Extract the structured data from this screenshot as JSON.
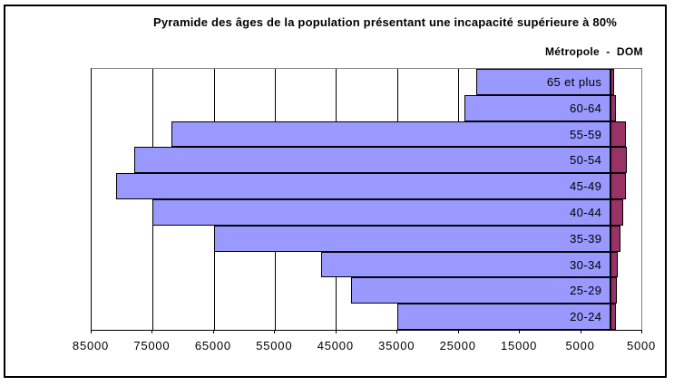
{
  "title": "Pyramide des âges de la population présentant une incapacité supérieure à 80%",
  "legend": {
    "text": "Métropole  -  DOM"
  },
  "chart_data": {
    "type": "bar",
    "subtype": "horizontal-population-pyramid",
    "title": "Pyramide des âges de la population présentant une incapacité supérieure à 80%",
    "categories": [
      "65 et plus",
      "60-64",
      "55-59",
      "50-54",
      "45-49",
      "40-44",
      "35-39",
      "30-34",
      "25-29",
      "20-24"
    ],
    "series": [
      {
        "name": "Métropole",
        "color": "#9999FF",
        "side": "left",
        "values": [
          22000,
          24000,
          72000,
          78000,
          81000,
          75000,
          65000,
          47500,
          42500,
          35000
        ]
      },
      {
        "name": "DOM",
        "color": "#993366",
        "side": "right",
        "values": [
          600,
          800,
          2500,
          2600,
          2500,
          2100,
          1600,
          1200,
          1000,
          800
        ]
      }
    ],
    "x_axis": {
      "tick_labels": [
        "85000",
        "75000",
        "65000",
        "55000",
        "45000",
        "35000",
        "25000",
        "15000",
        "5000",
        "5000"
      ],
      "left_max": 85000,
      "right_max": 5000,
      "tick_interval": 10000
    },
    "grid": true,
    "legend_position": "top-right",
    "colors": {
      "gridline": "#000000",
      "plot_border": "#808080",
      "axis": "#000000",
      "frame_border": "#000000",
      "background": "#FFFFFF"
    }
  }
}
